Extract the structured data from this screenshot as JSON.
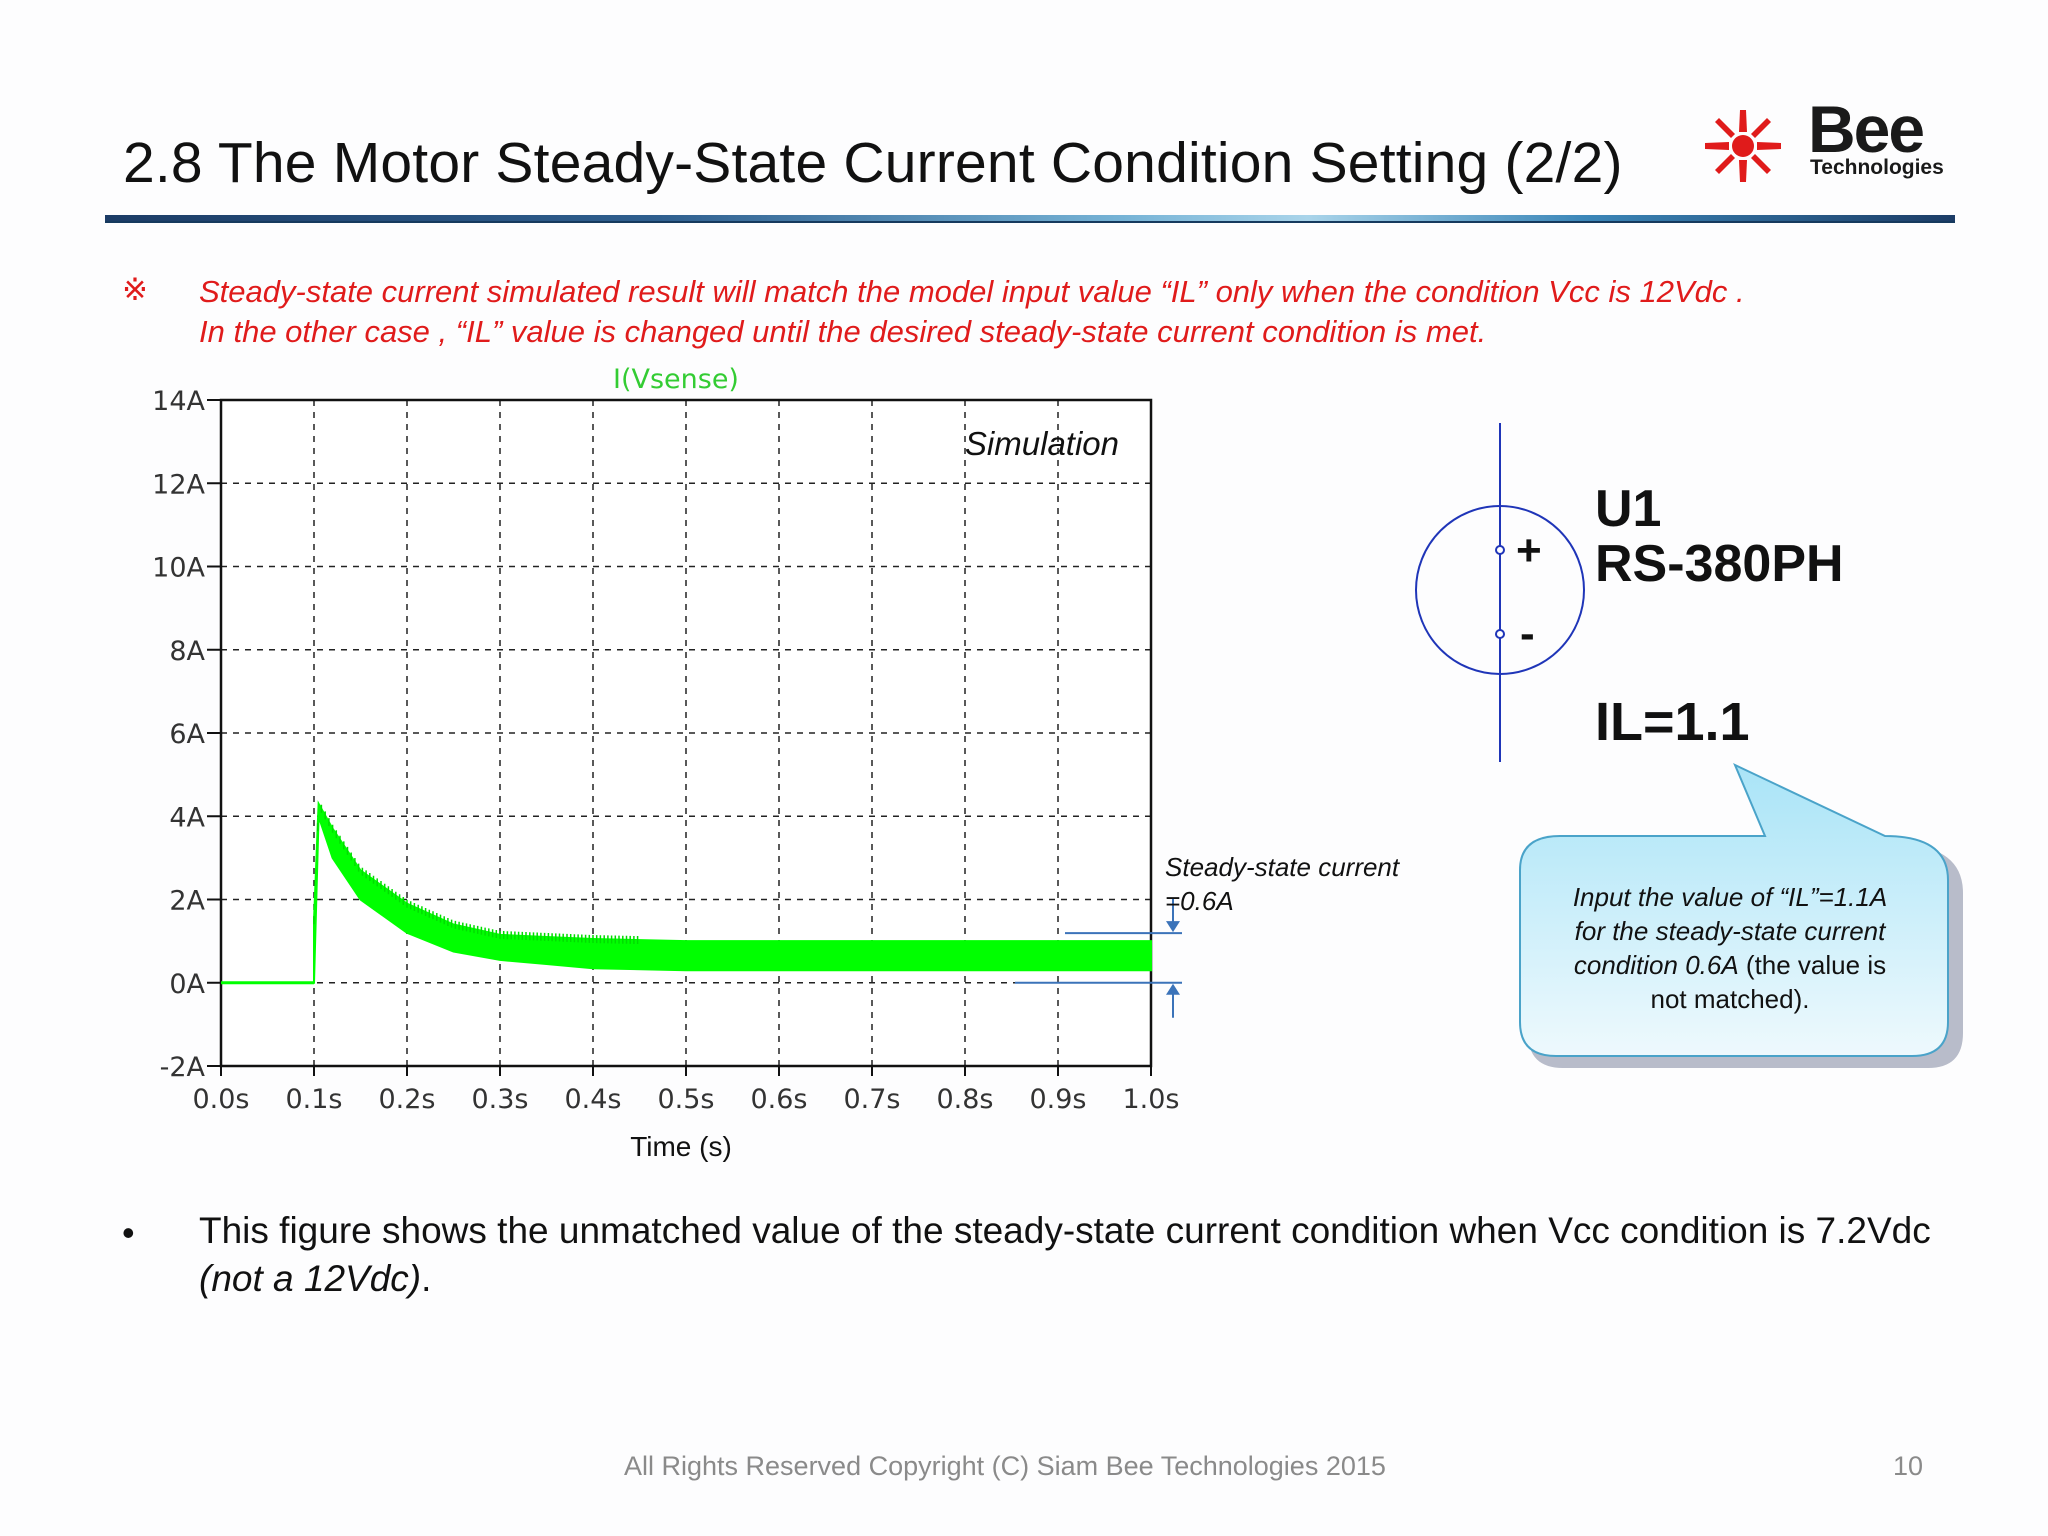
{
  "slide": {
    "title": "2.8 The Motor Steady-State Current Condition Setting (2/2)",
    "logo": {
      "brand": "Bee",
      "sub": "Technologies",
      "colors": {
        "star": "#e01b1b",
        "text": "#1a1a1a"
      }
    },
    "note": {
      "mark": "※",
      "line1": "Steady-state current  simulated result will match the model input value “IL” only when the condition Vcc is 12Vdc .",
      "line2": "In the other case , “IL” value is changed until the desired steady-state current condition is met.",
      "color": "#e01b1b"
    },
    "annotation": {
      "line1": "Steady-state current",
      "line2": "=0.6A"
    },
    "schematic": {
      "ref": "U1",
      "model": "RS-380PH",
      "plus": "+",
      "minus": "-",
      "param": "IL=1.1"
    },
    "callout": {
      "line1": "Input the value of “IL”=1.1A",
      "line2": "for the steady-state current",
      "line3_italic": "condition 0.6A",
      "line3_rest": " (the value is",
      "line4": "not matched).",
      "fill": "#bfeaf8",
      "stroke": "#4aa3c9"
    },
    "bullet": {
      "dot": "•",
      "text": "This figure shows the unmatched value of the steady-state current condition when Vcc condition is 7.2Vdc ",
      "italic": "(not a 12Vdc)",
      "end": "."
    },
    "footer": "All Rights Reserved Copyright (C) Siam Bee Technologies 2015",
    "page_number": "10"
  },
  "chart_data": {
    "type": "line",
    "title": "I(Vsense)",
    "xlabel": "Time (s)",
    "ylabel": "",
    "panel_label": "Simulation",
    "xlim": [
      0,
      1.0
    ],
    "ylim": [
      -2,
      14
    ],
    "x_ticks": [
      0,
      0.1,
      0.2,
      0.3,
      0.4,
      0.5,
      0.6,
      0.7,
      0.8,
      0.9,
      1.0
    ],
    "x_tick_labels": [
      "0.0s",
      "0.1s",
      "0.2s",
      "0.3s",
      "0.4s",
      "0.5s",
      "0.6s",
      "0.7s",
      "0.8s",
      "0.9s",
      "1.0s"
    ],
    "y_ticks": [
      -2,
      0,
      2,
      4,
      6,
      8,
      10,
      12,
      14
    ],
    "y_tick_labels": [
      "-2A",
      "0A",
      "2A",
      "4A",
      "6A",
      "8A",
      "10A",
      "12A",
      "14A"
    ],
    "grid": true,
    "series": [
      {
        "name": "I(Vsense)",
        "color": "#00ff00",
        "x": [
          0,
          0.1,
          0.1,
          0.105,
          0.12,
          0.15,
          0.2,
          0.25,
          0.3,
          0.35,
          0.4,
          0.5,
          0.6,
          0.7,
          0.8,
          0.9,
          1.0
        ],
        "y_upper": [
          0,
          0,
          1.5,
          4.3,
          3.7,
          2.7,
          1.9,
          1.4,
          1.15,
          1.1,
          1.05,
          1.0,
          1.0,
          1.0,
          1.0,
          1.0,
          1.0
        ],
        "y_lower": [
          0,
          0,
          0,
          4.0,
          3.0,
          2.0,
          1.2,
          0.75,
          0.55,
          0.45,
          0.35,
          0.3,
          0.3,
          0.3,
          0.3,
          0.3,
          0.3
        ]
      }
    ],
    "steady_state_value": 0.6
  }
}
